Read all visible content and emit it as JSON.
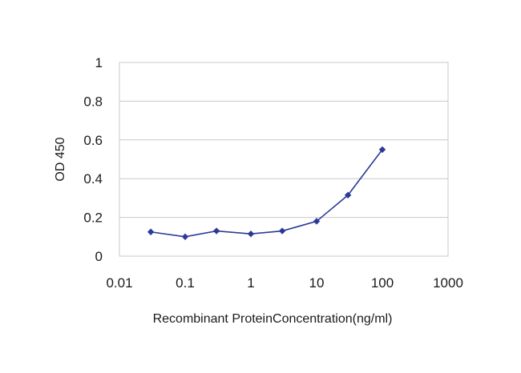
{
  "chart_data": {
    "type": "line",
    "title": "",
    "xlabel": "Recombinant ProteinConcentration(ng/ml)",
    "ylabel": "OD 450",
    "x_scale": "log",
    "xlim": [
      0.01,
      1000
    ],
    "ylim": [
      0,
      1
    ],
    "x_ticks": [
      "0.01",
      "0.1",
      "1",
      "10",
      "100",
      "1000"
    ],
    "y_ticks": [
      "0",
      "0.2",
      "0.4",
      "0.6",
      "0.8",
      "1"
    ],
    "grid": "horizontal",
    "legend": "none",
    "series": [
      {
        "color": "#2b3a97",
        "x": [
          0.03,
          0.1,
          0.3,
          1,
          3,
          10,
          30,
          100
        ],
        "y": [
          0.125,
          0.1,
          0.13,
          0.115,
          0.13,
          0.18,
          0.315,
          0.55
        ]
      }
    ]
  }
}
